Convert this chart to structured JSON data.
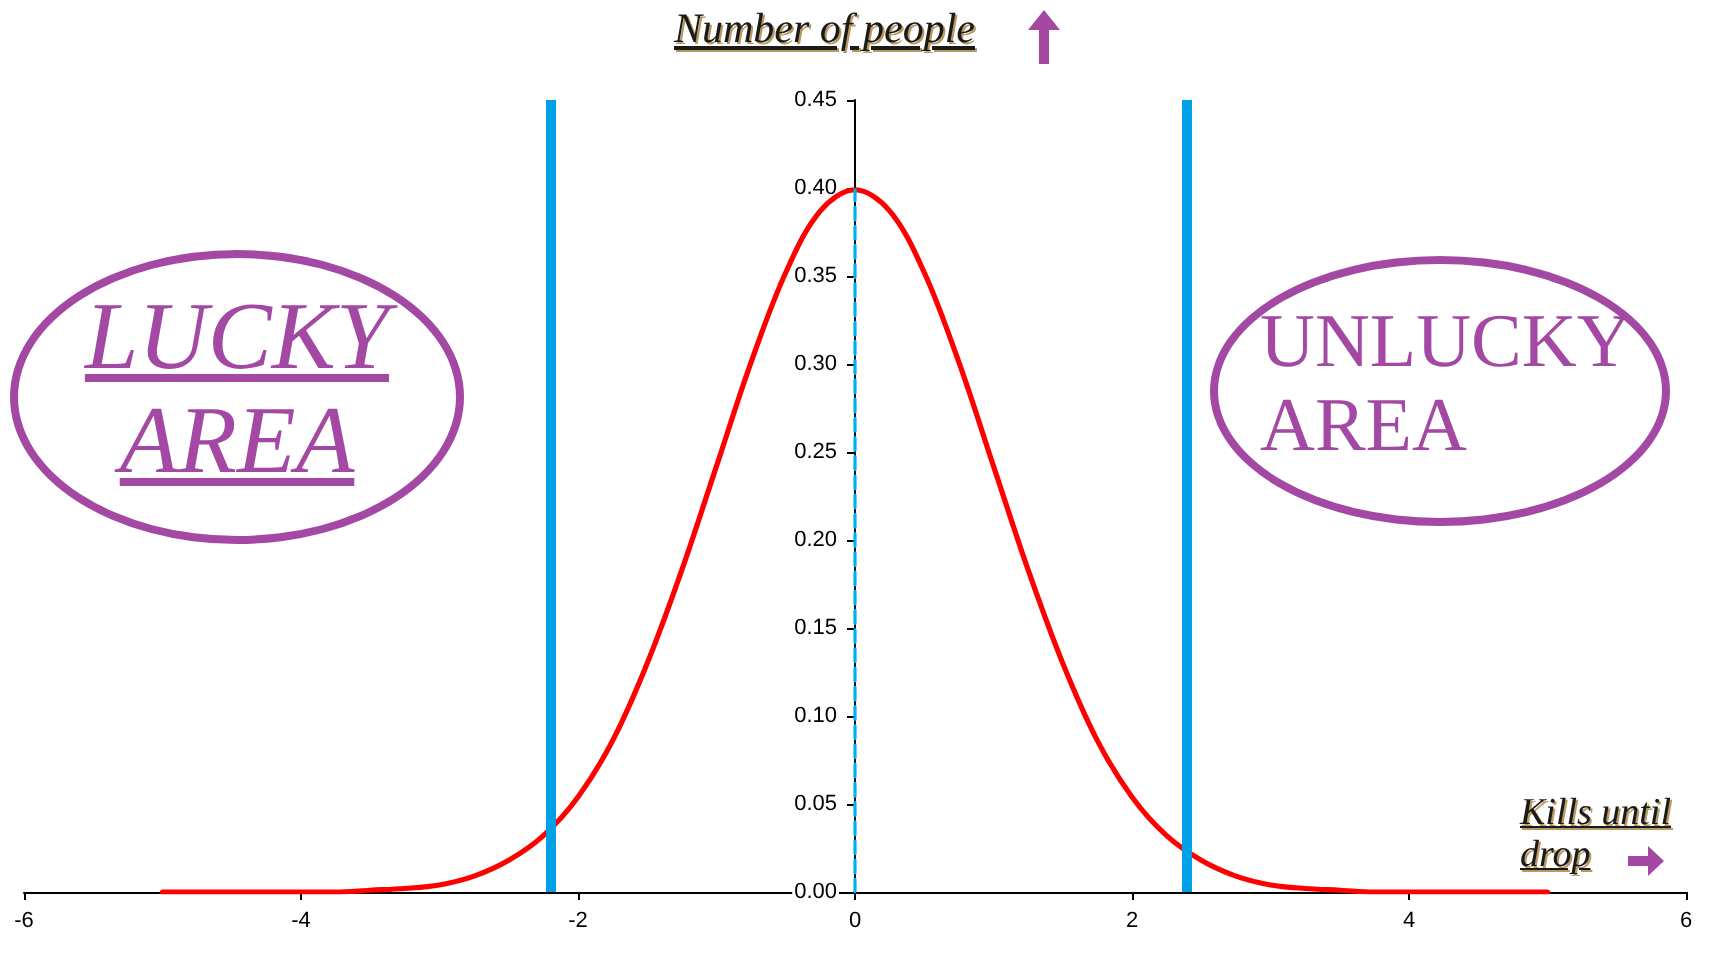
{
  "chart_data": {
    "type": "line",
    "xlabel": "Kills until drop",
    "ylabel": "Number of people",
    "annotations": [
      "LUCKY AREA",
      "UNLUCKY AREA"
    ],
    "xlim": [
      -6,
      6
    ],
    "xticks": [
      -6,
      -4,
      -2,
      0,
      2,
      4,
      6
    ],
    "ylim": [
      0,
      0.45
    ],
    "yticks": [
      {
        "value": 0,
        "label": "0.00"
      },
      {
        "value": 0.05,
        "label": "0.05"
      },
      {
        "value": 0.1,
        "label": "0.10"
      },
      {
        "value": 0.15,
        "label": "0.15"
      },
      {
        "value": 0.2,
        "label": "0.20"
      },
      {
        "value": 0.25,
        "label": "0.25"
      },
      {
        "value": 0.3,
        "label": "0.30"
      },
      {
        "value": 0.35,
        "label": "0.35"
      },
      {
        "value": 0.4,
        "label": "0.40"
      },
      {
        "value": 0.45,
        "label": "0.45"
      }
    ],
    "marker": "none",
    "series": [
      {
        "color": "#ff0000",
        "x": [
          -5,
          -4.75,
          -4.5,
          -4.25,
          -4,
          -3.75,
          -3.5,
          -3.25,
          -3,
          -2.75,
          -2.5,
          -2.25,
          -2,
          -1.75,
          -1.5,
          -1.25,
          -1,
          -0.75,
          -0.5,
          -0.25,
          0,
          0.25,
          0.5,
          0.75,
          1,
          1.25,
          1.5,
          1.75,
          2,
          2.25,
          2.5,
          2.75,
          3,
          3.25,
          3.5,
          3.75,
          4,
          4.25,
          4.5,
          4.75,
          5
        ],
        "values": [
          0,
          0,
          0,
          0,
          0,
          0,
          0.001,
          0.002,
          0.004,
          0.009,
          0.018,
          0.032,
          0.054,
          0.086,
          0.13,
          0.183,
          0.242,
          0.301,
          0.352,
          0.387,
          0.399,
          0.387,
          0.352,
          0.301,
          0.242,
          0.183,
          0.13,
          0.086,
          0.054,
          0.032,
          0.018,
          0.009,
          0.004,
          0.002,
          0.001,
          0,
          0,
          0,
          0,
          0,
          0
        ]
      },
      {
        "type": "line",
        "color": "#00b0f0",
        "line_style": "dashed",
        "x": [
          0,
          0
        ],
        "values": [
          0,
          0.399
        ]
      }
    ],
    "ref_lines": [
      {
        "axis": "x",
        "value": -2.2,
        "color": "#00a0e6"
      },
      {
        "axis": "x",
        "value": 2.4,
        "color": "#00a0e6"
      }
    ]
  }
}
